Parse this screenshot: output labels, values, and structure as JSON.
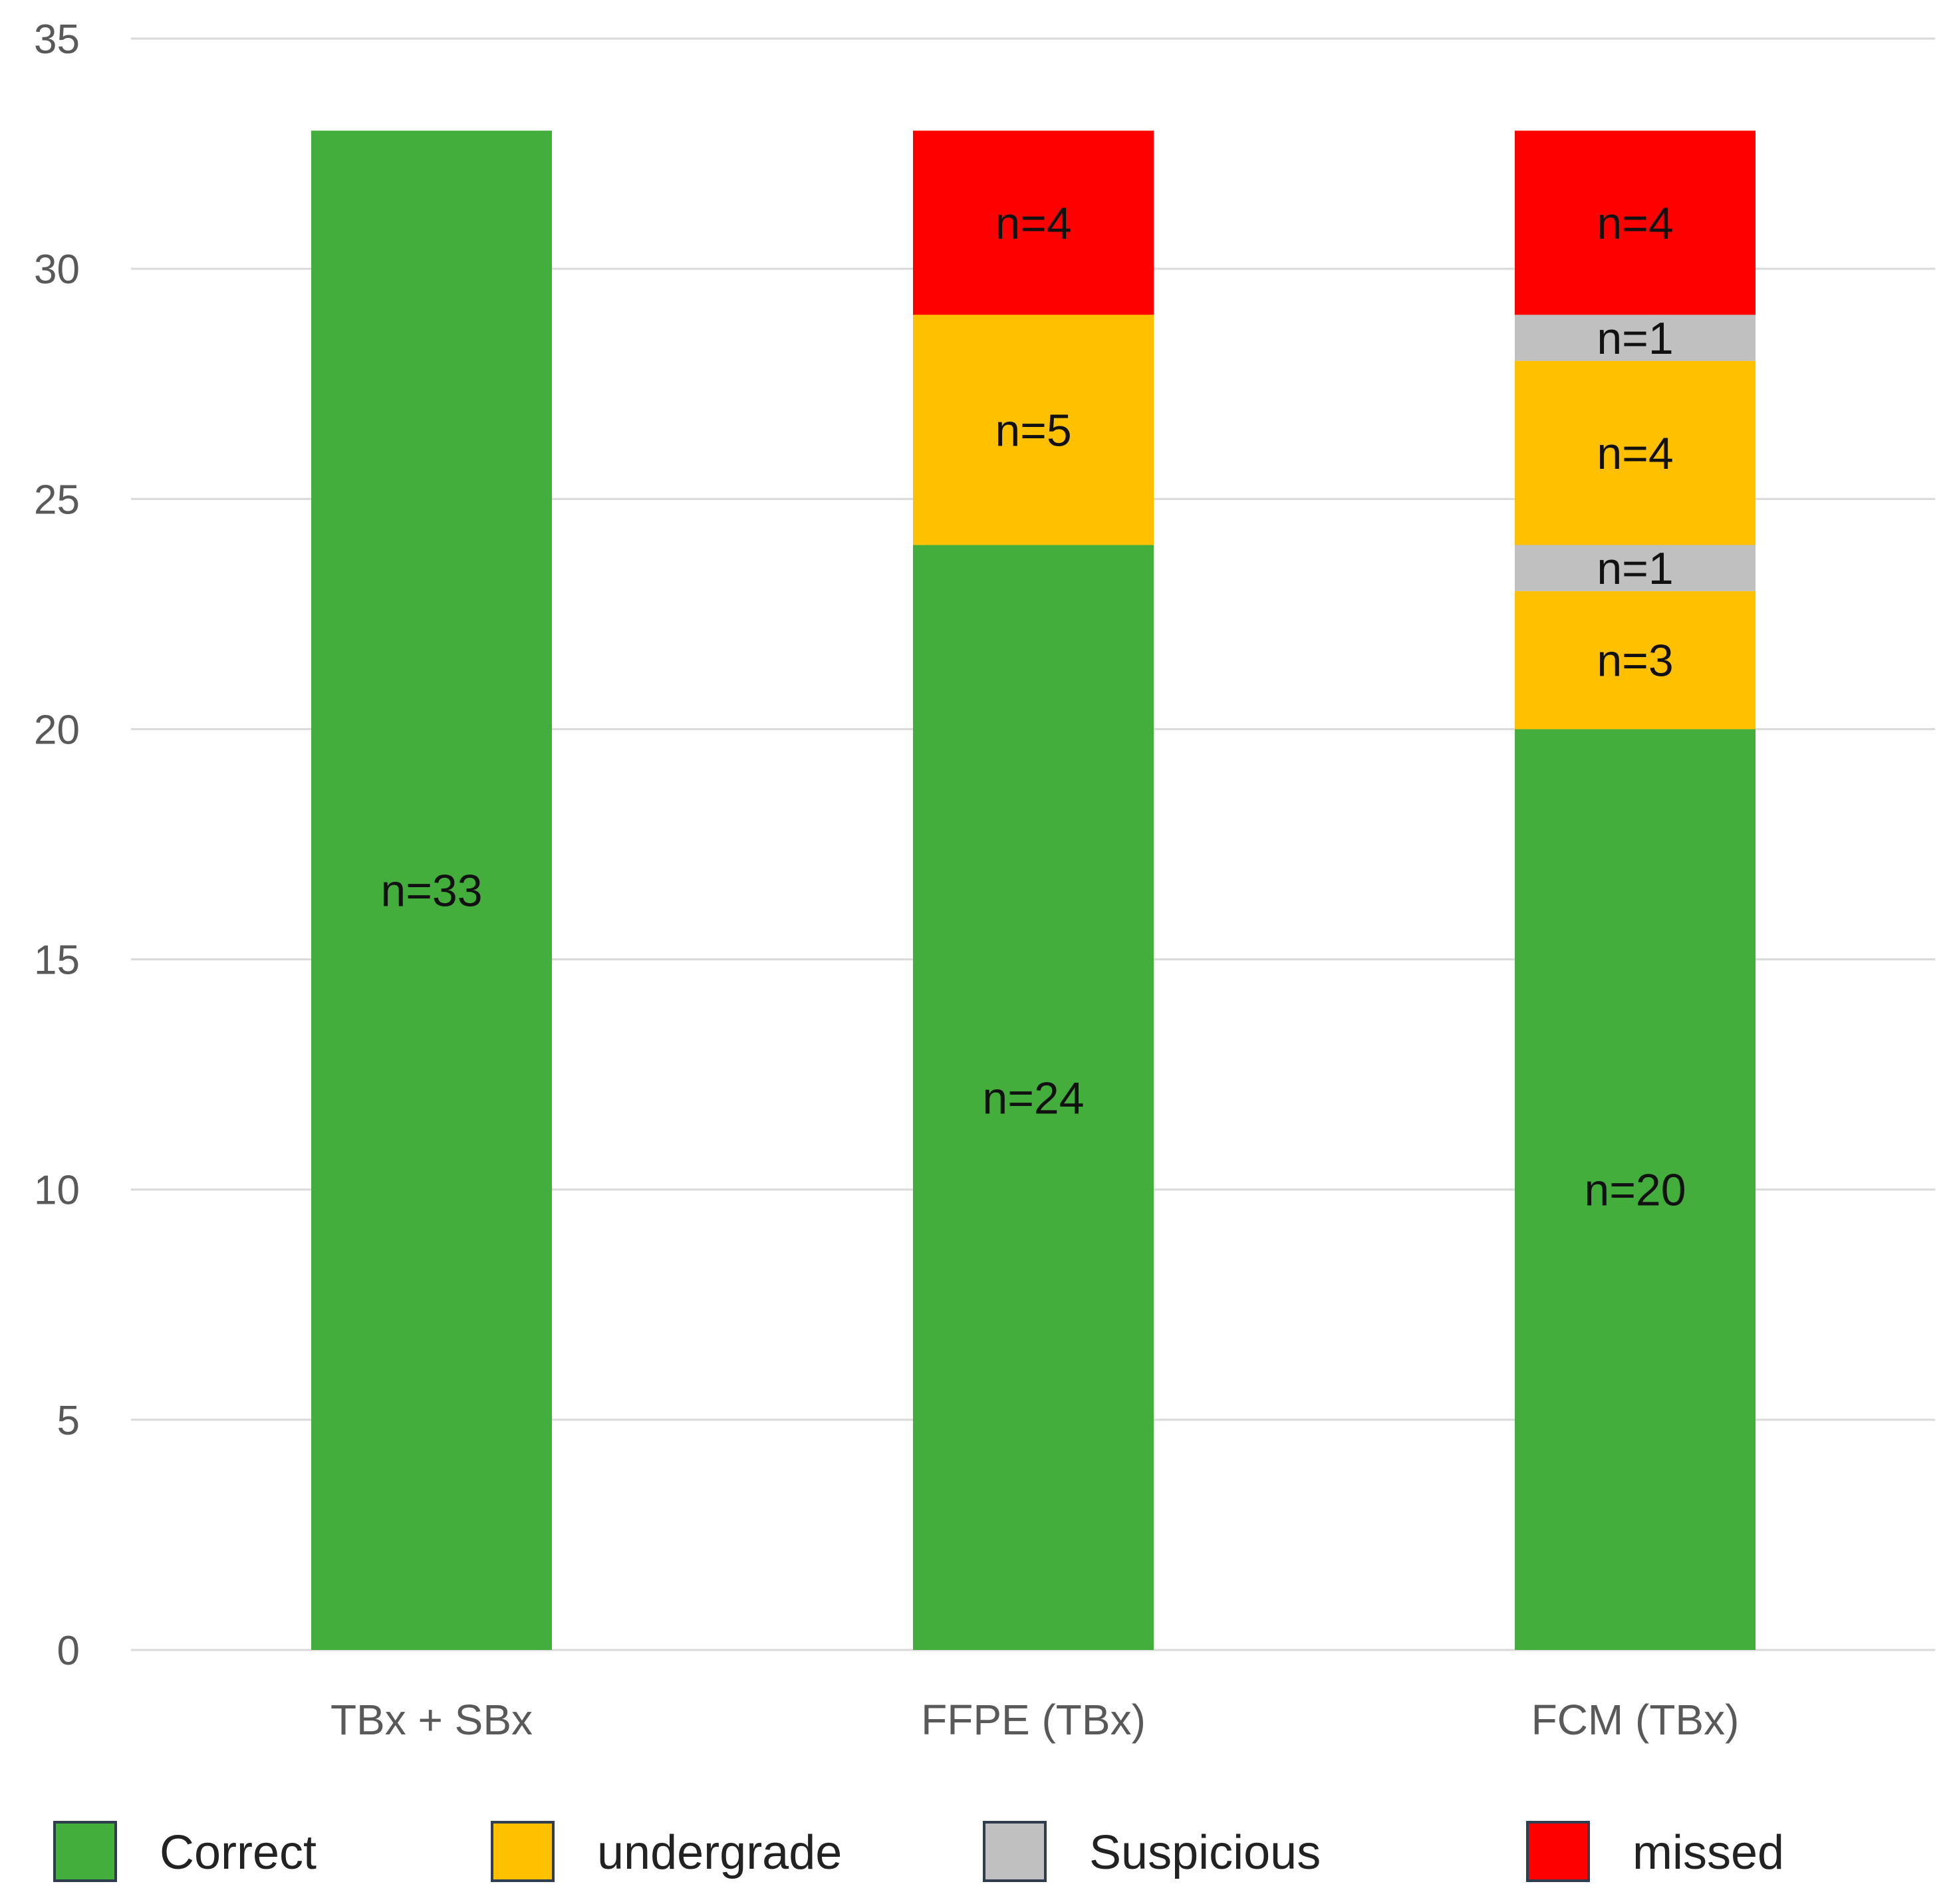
{
  "chart_data": {
    "type": "bar",
    "stacked": true,
    "title": "",
    "xlabel": "",
    "ylabel": "",
    "ylim": [
      0,
      35
    ],
    "yticks": [
      0,
      5,
      10,
      15,
      20,
      25,
      30,
      35
    ],
    "grid": true,
    "legend_position": "bottom",
    "categories": [
      "TBx + SBx",
      "FFPE (TBx)",
      "FCM (TBx)"
    ],
    "colors": {
      "Correct": "#43ae3b",
      "undergrade": "#ffc000",
      "Suspicious": "#c0c0c0",
      "missed": "#ff0000"
    },
    "legend": [
      "Correct",
      "undergrade",
      "Suspicious",
      "missed"
    ],
    "stacks": [
      [
        {
          "series": "Correct",
          "value": 33,
          "label": "n=33"
        }
      ],
      [
        {
          "series": "Correct",
          "value": 24,
          "label": "n=24"
        },
        {
          "series": "undergrade",
          "value": 5,
          "label": "n=5"
        },
        {
          "series": "missed",
          "value": 4,
          "label": "n=4"
        }
      ],
      [
        {
          "series": "Correct",
          "value": 20,
          "label": "n=20"
        },
        {
          "series": "undergrade",
          "value": 3,
          "label": "n=3"
        },
        {
          "series": "Suspicious",
          "value": 1,
          "label": "n=1"
        },
        {
          "series": "undergrade",
          "value": 4,
          "label": "n=4"
        },
        {
          "series": "Suspicious",
          "value": 1,
          "label": "n=1"
        },
        {
          "series": "missed",
          "value": 4,
          "label": "n=4"
        }
      ]
    ]
  }
}
